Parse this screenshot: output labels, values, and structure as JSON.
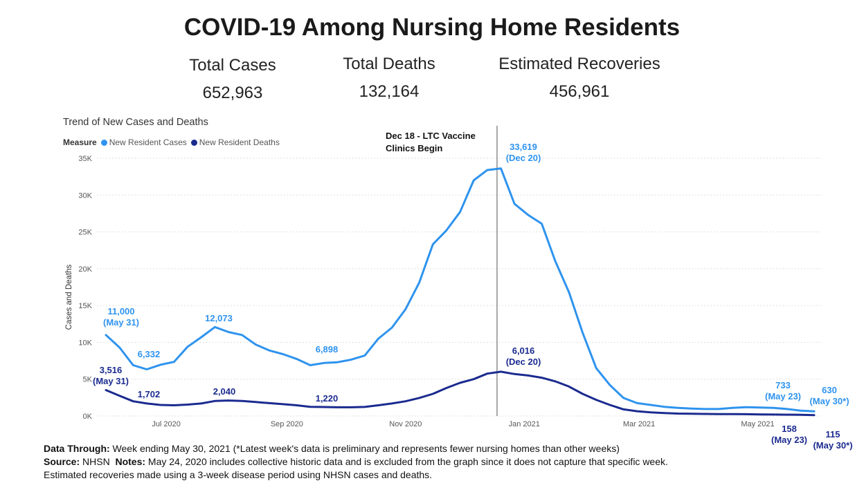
{
  "header": {
    "title": "COVID-19 Among Nursing Home Residents"
  },
  "kpis": {
    "total_cases_label": "Total Cases",
    "total_cases_value": "652,963",
    "total_deaths_label": "Total Deaths",
    "total_deaths_value": "132,164",
    "recoveries_label": "Estimated Recoveries",
    "recoveries_value": "456,961"
  },
  "chart_data": {
    "type": "line",
    "title": "Trend of New Cases and Deaths",
    "legend": {
      "title": "Measure",
      "placement": "top-left"
    },
    "xlabel": "",
    "ylabel": "Cases and Deaths",
    "ylim": [
      0,
      35000
    ],
    "yticks": [
      0,
      5000,
      10000,
      15000,
      20000,
      25000,
      30000,
      35000
    ],
    "ytick_labels": [
      "0K",
      "5K",
      "10K",
      "15K",
      "20K",
      "25K",
      "30K",
      "35K"
    ],
    "xticks": [
      "2020-07-01",
      "2020-09-01",
      "2020-11-01",
      "2021-01-01",
      "2021-03-01",
      "2021-05-01"
    ],
    "xtick_labels": [
      "Jul 2020",
      "Sep 2020",
      "Nov 2020",
      "Jan 2021",
      "Mar 2021",
      "May 2021"
    ],
    "grid": true,
    "x": [
      "2020-05-31",
      "2020-06-07",
      "2020-06-14",
      "2020-06-21",
      "2020-06-28",
      "2020-07-05",
      "2020-07-12",
      "2020-07-19",
      "2020-07-26",
      "2020-08-02",
      "2020-08-09",
      "2020-08-16",
      "2020-08-23",
      "2020-08-30",
      "2020-09-06",
      "2020-09-13",
      "2020-09-20",
      "2020-09-27",
      "2020-10-04",
      "2020-10-11",
      "2020-10-18",
      "2020-10-25",
      "2020-11-01",
      "2020-11-08",
      "2020-11-15",
      "2020-11-22",
      "2020-11-29",
      "2020-12-06",
      "2020-12-13",
      "2020-12-20",
      "2020-12-27",
      "2021-01-03",
      "2021-01-10",
      "2021-01-17",
      "2021-01-24",
      "2021-01-31",
      "2021-02-07",
      "2021-02-14",
      "2021-02-21",
      "2021-02-28",
      "2021-03-07",
      "2021-03-14",
      "2021-03-21",
      "2021-03-28",
      "2021-04-04",
      "2021-04-11",
      "2021-04-18",
      "2021-04-25",
      "2021-05-02",
      "2021-05-09",
      "2021-05-16",
      "2021-05-23",
      "2021-05-30"
    ],
    "series": [
      {
        "name": "New Resident Cases",
        "color": "#2e93ee",
        "values": [
          11000,
          9300,
          6900,
          6332,
          6950,
          7350,
          9400,
          10700,
          12073,
          11400,
          11000,
          9700,
          8900,
          8400,
          7750,
          6898,
          7200,
          7300,
          7650,
          8200,
          10500,
          12000,
          14500,
          18100,
          23300,
          25200,
          27700,
          32000,
          33400,
          33619,
          28800,
          27300,
          26100,
          21000,
          16800,
          11300,
          6500,
          4200,
          2450,
          1750,
          1500,
          1250,
          1100,
          1000,
          950,
          950,
          1100,
          1200,
          1150,
          1100,
          950,
          733,
          630
        ]
      },
      {
        "name": "New Resident Deaths",
        "color": "#1a2a8f",
        "values": [
          3516,
          2750,
          2000,
          1702,
          1500,
          1450,
          1550,
          1700,
          2040,
          2100,
          2050,
          1900,
          1750,
          1600,
          1450,
          1250,
          1220,
          1180,
          1180,
          1230,
          1450,
          1700,
          2000,
          2450,
          3000,
          3800,
          4500,
          5000,
          5750,
          6016,
          5700,
          5500,
          5200,
          4700,
          4000,
          3000,
          2200,
          1500,
          900,
          650,
          500,
          400,
          330,
          300,
          280,
          260,
          250,
          240,
          220,
          200,
          180,
          158,
          115
        ]
      }
    ],
    "annotations": {
      "vline_date": "2020-12-18",
      "vline_label_line1": "Dec 18 - LTC Vaccine",
      "vline_label_line2": "Clinics Begin",
      "cases_labels": [
        {
          "value": "11,000",
          "sub": "(May 31)"
        },
        {
          "value": "6,332",
          "sub": ""
        },
        {
          "value": "12,073",
          "sub": ""
        },
        {
          "value": "6,898",
          "sub": ""
        },
        {
          "value": "33,619",
          "sub": "(Dec 20)"
        },
        {
          "value": "733",
          "sub": "(May 23)"
        },
        {
          "value": "630",
          "sub": "(May 30*)"
        }
      ],
      "deaths_labels": [
        {
          "value": "3,516",
          "sub": "(May 31)"
        },
        {
          "value": "1,702",
          "sub": ""
        },
        {
          "value": "2,040",
          "sub": ""
        },
        {
          "value": "1,220",
          "sub": ""
        },
        {
          "value": "6,016",
          "sub": "(Dec 20)"
        },
        {
          "value": "158",
          "sub": "(May 23)"
        },
        {
          "value": "115",
          "sub": "(May 30*)"
        }
      ]
    }
  },
  "notes": {
    "data_through_label": "Data Through:",
    "data_through_text": "Week ending May 30, 2021 (*Latest week's data is preliminary and represents fewer nursing homes than other weeks)",
    "source_label": "Source:",
    "source_text": "NHSN",
    "notes_label": "Notes:",
    "notes_text": "May 24, 2020 includes collective historic data and is excluded from the graph since it does not capture that specific week.",
    "recoveries_note": "Estimated recoveries made using a 3-week disease period using NHSN cases and deaths."
  }
}
